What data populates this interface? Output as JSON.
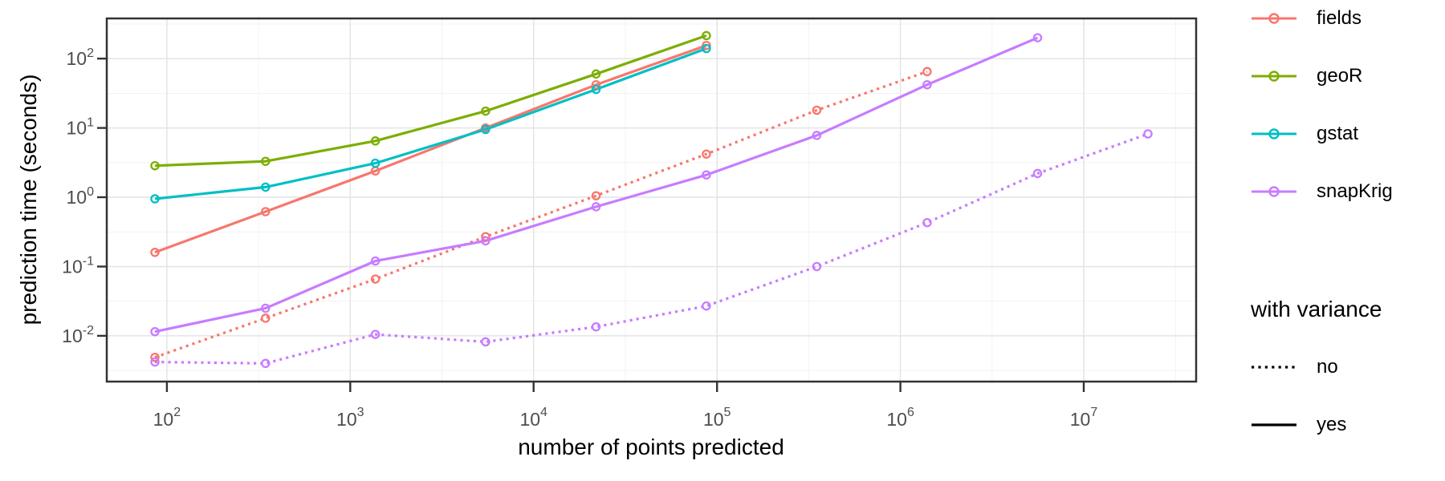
{
  "chart_data": {
    "type": "line",
    "title": "",
    "xlabel": "number of points predicted",
    "ylabel": "prediction time (seconds)",
    "x_scale": "log10",
    "y_scale": "log10",
    "x_tick_labels": [
      "10^2",
      "10^3",
      "10^4",
      "10^5",
      "10^6",
      "10^7"
    ],
    "y_tick_labels": [
      "10^2",
      "10^1",
      "10^0",
      "10^-1",
      "10^-2"
    ],
    "x_tick_exponents": [
      2,
      3,
      4,
      5,
      6,
      7
    ],
    "y_tick_exponents": [
      2,
      1,
      0,
      -1,
      -2
    ],
    "x_log_range": [
      1.672,
      7.613
    ],
    "y_log_range": [
      -2.66,
      2.58
    ],
    "grid": "major and minor, light grey on white, dark panel border",
    "legend_position": "right",
    "series": [
      {
        "package": "fields",
        "with_variance": "yes",
        "linetype": "solid",
        "color": "#F8766D",
        "x": [
          86,
          345,
          1370,
          5470,
          21900,
          87500
        ],
        "y": [
          0.16,
          0.62,
          2.4,
          10,
          42,
          155
        ]
      },
      {
        "package": "fields",
        "with_variance": "no",
        "linetype": "dotted",
        "color": "#F8766D",
        "x": [
          86,
          345,
          1370,
          5470,
          21900,
          87500,
          350000,
          1400000
        ],
        "y": [
          0.0049,
          0.018,
          0.066,
          0.27,
          1.05,
          4.2,
          18,
          65
        ]
      },
      {
        "package": "geoR",
        "with_variance": "yes",
        "linetype": "solid",
        "color": "#7CAE00",
        "x": [
          86,
          345,
          1370,
          5470,
          21900,
          87500
        ],
        "y": [
          2.85,
          3.3,
          6.5,
          17.5,
          60,
          215
        ]
      },
      {
        "package": "gstat",
        "with_variance": "yes",
        "linetype": "solid",
        "color": "#00BFC4",
        "x": [
          86,
          345,
          1370,
          5470,
          21900,
          87500
        ],
        "y": [
          0.95,
          1.4,
          3.1,
          9.5,
          36,
          140
        ]
      },
      {
        "package": "snapKrig",
        "with_variance": "yes",
        "linetype": "solid",
        "color": "#C77CFF",
        "x": [
          86,
          345,
          1370,
          5470,
          21900,
          87500,
          350000,
          1400000,
          5600000
        ],
        "y": [
          0.0115,
          0.025,
          0.12,
          0.235,
          0.73,
          2.1,
          7.8,
          42,
          200
        ]
      },
      {
        "package": "snapKrig",
        "with_variance": "no",
        "linetype": "dotted",
        "color": "#C77CFF",
        "x": [
          86,
          345,
          1370,
          5470,
          21900,
          87500,
          350000,
          1400000,
          5600000,
          22400000
        ],
        "y": [
          0.0042,
          0.004,
          0.0105,
          0.0082,
          0.0135,
          0.027,
          0.1,
          0.43,
          2.2,
          8.2
        ]
      }
    ]
  },
  "legend_color": {
    "entries": [
      {
        "label": "fields",
        "color": "#F8766D"
      },
      {
        "label": "geoR",
        "color": "#7CAE00"
      },
      {
        "label": "gstat",
        "color": "#00BFC4"
      },
      {
        "label": "snapKrig",
        "color": "#C77CFF"
      }
    ]
  },
  "legend_linetype": {
    "title": "with variance",
    "entries": [
      {
        "label": "no",
        "linetype": "dotted"
      },
      {
        "label": "yes",
        "linetype": "solid"
      }
    ]
  },
  "theme": {
    "background": "#FFFFFF",
    "panel_border": "#333333",
    "grid_major": "#E4E4E4",
    "grid_minor": "#F1F1F1",
    "tick_label_color": "#4D4D4D",
    "axis_title_color": "#000000"
  }
}
